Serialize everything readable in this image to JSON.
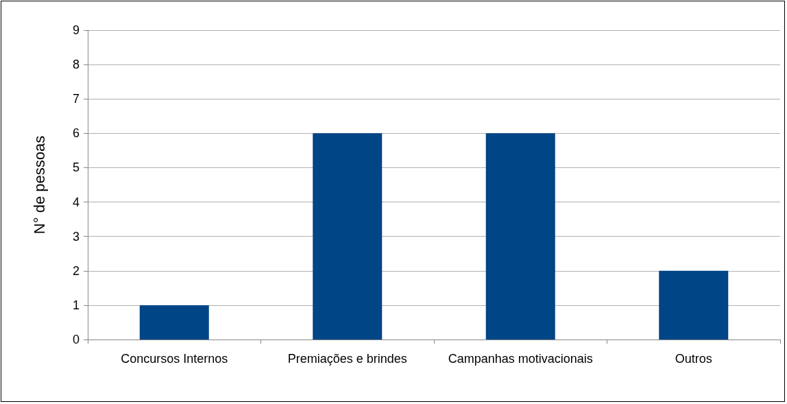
{
  "chart_data": {
    "type": "bar",
    "ylabel": "N° de pessoas",
    "categories": [
      "Concursos Internos",
      "Premiações e brindes",
      "Campanhas motivacionais",
      "Outros"
    ],
    "values": [
      1,
      6,
      6,
      2
    ],
    "color": "#004586",
    "ylim": [
      0,
      9
    ],
    "yticks": [
      0,
      1,
      2,
      3,
      4,
      5,
      6,
      7,
      8,
      9
    ],
    "grid": "y"
  }
}
